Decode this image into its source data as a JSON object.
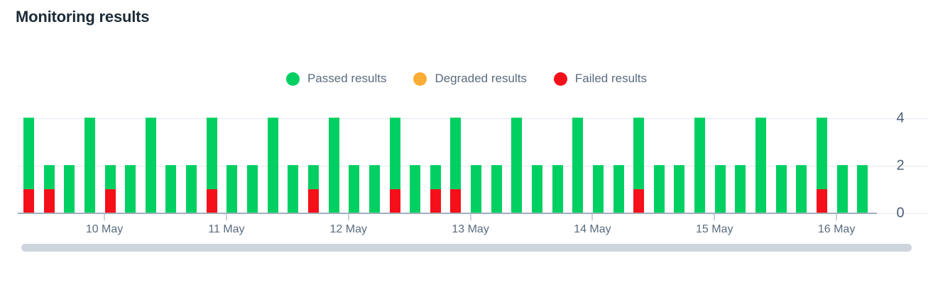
{
  "title": "Monitoring results",
  "legend": [
    {
      "name": "passed",
      "label": "Passed results",
      "color": "#00D062"
    },
    {
      "name": "degraded",
      "label": "Degraded results",
      "color": "#FBAD35"
    },
    {
      "name": "failed",
      "label": "Failed results",
      "color": "#F50F19"
    }
  ],
  "chart_data": {
    "type": "bar",
    "stacked": true,
    "title": "Monitoring results",
    "xlabel": "",
    "ylabel": "",
    "ylim": [
      0,
      4
    ],
    "y_ticks": [
      0,
      2,
      4
    ],
    "grid": true,
    "legend_position": "top-center",
    "segment_order": [
      "failed",
      "degraded",
      "passed"
    ],
    "series_colors": {
      "passed": "#00D062",
      "degraded": "#FBAD35",
      "failed": "#F50F19"
    },
    "x_tick_labels": [
      {
        "label": "10 May",
        "bar_index": 4
      },
      {
        "label": "11 May",
        "bar_index": 10
      },
      {
        "label": "12 May",
        "bar_index": 16
      },
      {
        "label": "13 May",
        "bar_index": 22
      },
      {
        "label": "14 May",
        "bar_index": 28
      },
      {
        "label": "15 May",
        "bar_index": 34
      },
      {
        "label": "16 May",
        "bar_index": 40
      }
    ],
    "bars": [
      {
        "passed": 3,
        "degraded": 0,
        "failed": 1
      },
      {
        "passed": 1,
        "degraded": 0,
        "failed": 1
      },
      {
        "passed": 2,
        "degraded": 0,
        "failed": 0
      },
      {
        "passed": 4,
        "degraded": 0,
        "failed": 0
      },
      {
        "passed": 1,
        "degraded": 0,
        "failed": 1
      },
      {
        "passed": 2,
        "degraded": 0,
        "failed": 0
      },
      {
        "passed": 4,
        "degraded": 0,
        "failed": 0
      },
      {
        "passed": 2,
        "degraded": 0,
        "failed": 0
      },
      {
        "passed": 2,
        "degraded": 0,
        "failed": 0
      },
      {
        "passed": 3,
        "degraded": 0,
        "failed": 1
      },
      {
        "passed": 2,
        "degraded": 0,
        "failed": 0
      },
      {
        "passed": 2,
        "degraded": 0,
        "failed": 0
      },
      {
        "passed": 4,
        "degraded": 0,
        "failed": 0
      },
      {
        "passed": 2,
        "degraded": 0,
        "failed": 0
      },
      {
        "passed": 1,
        "degraded": 0,
        "failed": 1
      },
      {
        "passed": 4,
        "degraded": 0,
        "failed": 0
      },
      {
        "passed": 2,
        "degraded": 0,
        "failed": 0
      },
      {
        "passed": 2,
        "degraded": 0,
        "failed": 0
      },
      {
        "passed": 3,
        "degraded": 0,
        "failed": 1
      },
      {
        "passed": 2,
        "degraded": 0,
        "failed": 0
      },
      {
        "passed": 1,
        "degraded": 0,
        "failed": 1
      },
      {
        "passed": 3,
        "degraded": 0,
        "failed": 1
      },
      {
        "passed": 2,
        "degraded": 0,
        "failed": 0
      },
      {
        "passed": 2,
        "degraded": 0,
        "failed": 0
      },
      {
        "passed": 4,
        "degraded": 0,
        "failed": 0
      },
      {
        "passed": 2,
        "degraded": 0,
        "failed": 0
      },
      {
        "passed": 2,
        "degraded": 0,
        "failed": 0
      },
      {
        "passed": 4,
        "degraded": 0,
        "failed": 0
      },
      {
        "passed": 2,
        "degraded": 0,
        "failed": 0
      },
      {
        "passed": 2,
        "degraded": 0,
        "failed": 0
      },
      {
        "passed": 3,
        "degraded": 0,
        "failed": 1
      },
      {
        "passed": 2,
        "degraded": 0,
        "failed": 0
      },
      {
        "passed": 2,
        "degraded": 0,
        "failed": 0
      },
      {
        "passed": 4,
        "degraded": 0,
        "failed": 0
      },
      {
        "passed": 2,
        "degraded": 0,
        "failed": 0
      },
      {
        "passed": 2,
        "degraded": 0,
        "failed": 0
      },
      {
        "passed": 4,
        "degraded": 0,
        "failed": 0
      },
      {
        "passed": 2,
        "degraded": 0,
        "failed": 0
      },
      {
        "passed": 2,
        "degraded": 0,
        "failed": 0
      },
      {
        "passed": 3,
        "degraded": 0,
        "failed": 1
      },
      {
        "passed": 2,
        "degraded": 0,
        "failed": 0
      },
      {
        "passed": 2,
        "degraded": 0,
        "failed": 0
      }
    ]
  },
  "colors": {
    "title_text": "#1C2B36",
    "legend_text": "#5A6B7E",
    "axis_label_text": "#4E6175",
    "gridline": "#E4E9EF",
    "axis_line": "#A2AEBC",
    "scrollbar": "#CED4DD",
    "background": "#FFFFFF"
  }
}
